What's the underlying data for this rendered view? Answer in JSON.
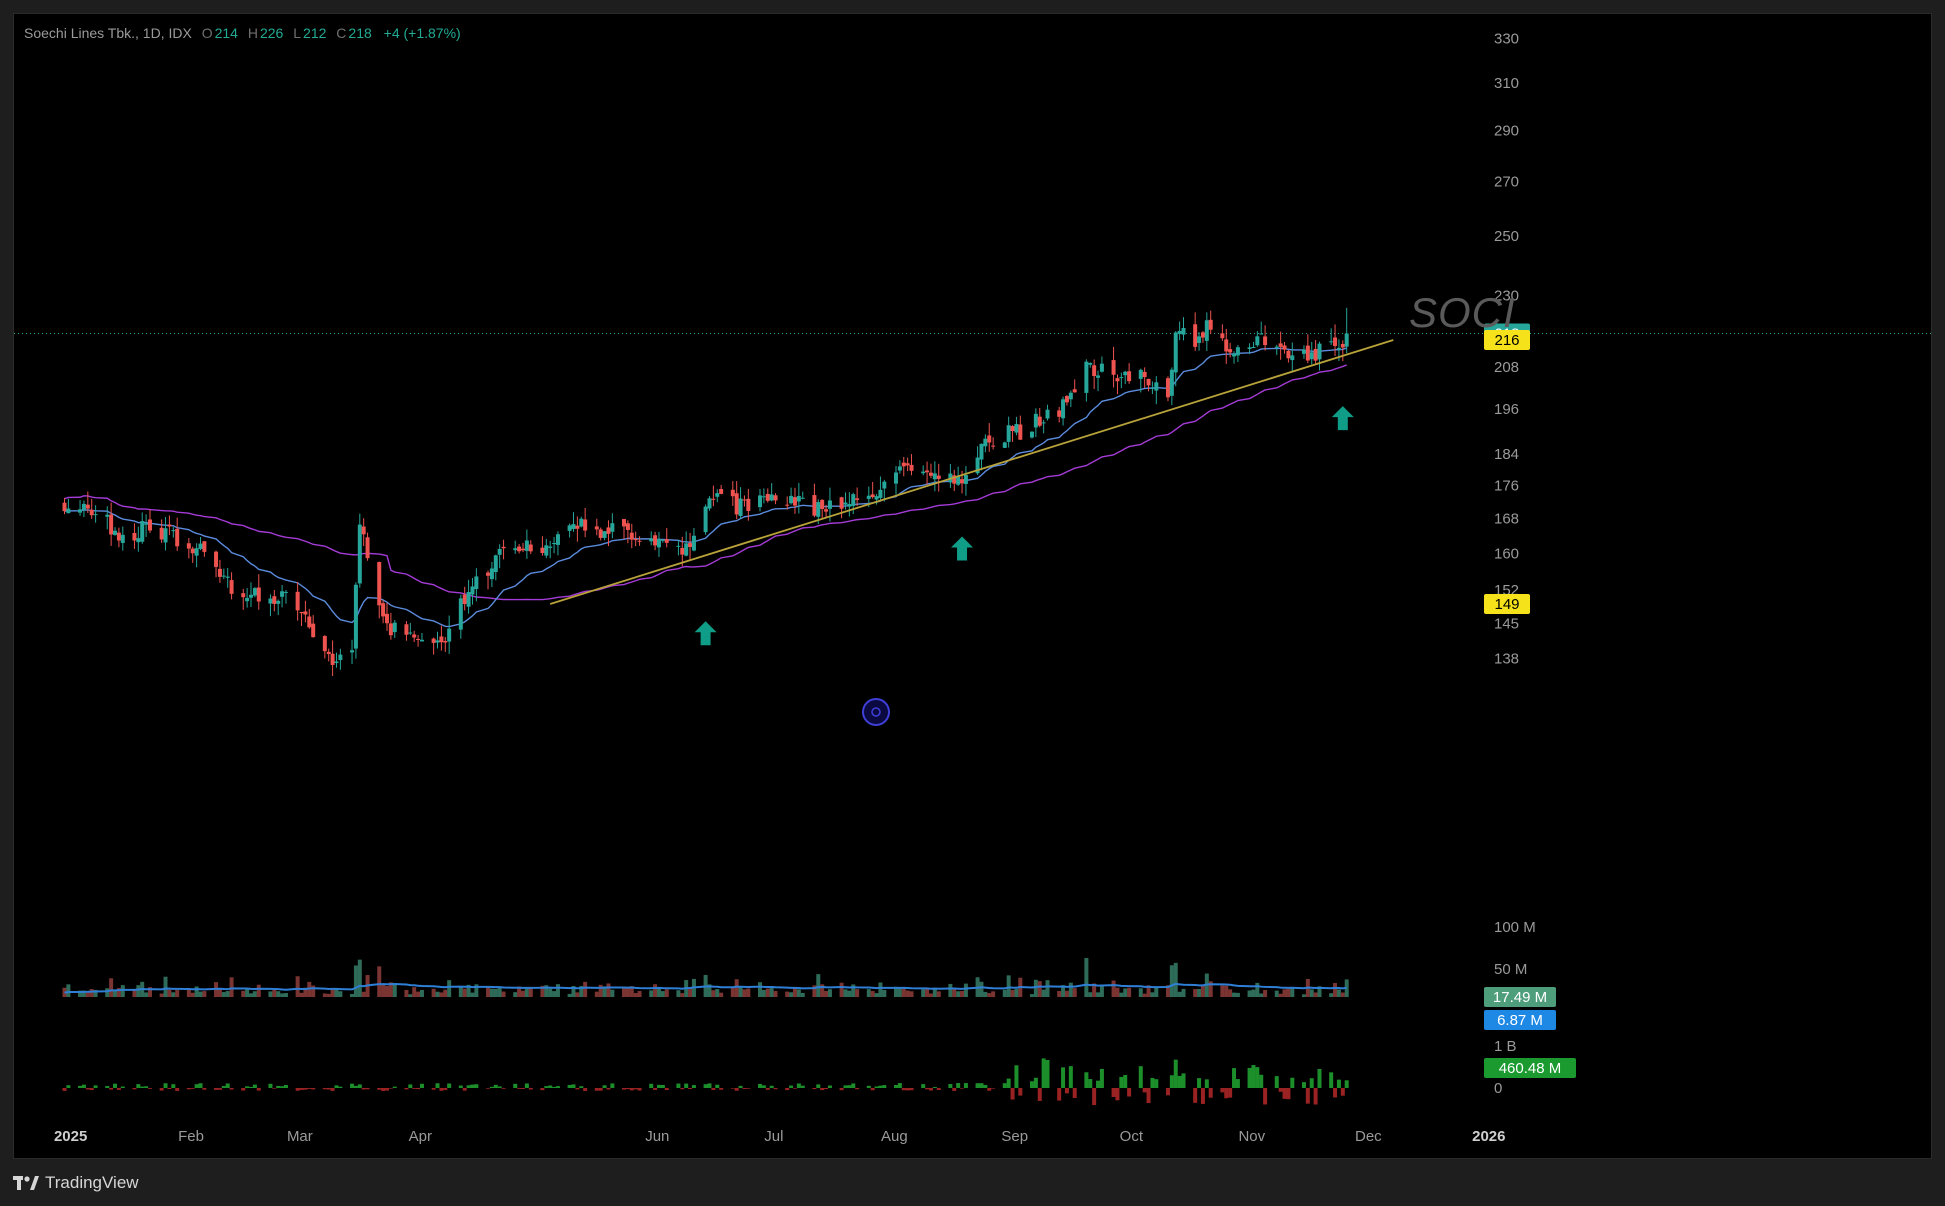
{
  "header": {
    "symbol": "Soechi Lines Tbk., 1D, IDX",
    "open_label": "O",
    "open": "214",
    "high_label": "H",
    "high": "226",
    "low_label": "L",
    "low": "212",
    "close_label": "C",
    "close": "218",
    "change": "+4 (+1.87%)"
  },
  "watermark": "SOCI",
  "footer": {
    "brand": "TradingView",
    "logo_icon": "tradingview-logo-icon"
  },
  "colors": {
    "up": "#26a69a",
    "down": "#ef5350",
    "ema_short": "#5b8bdc",
    "ma_long": "#a43bd6",
    "trendline": "#b8a23a",
    "arrow": "#0f9d87",
    "volume_ma": "#2f7fd6"
  },
  "chart_data": {
    "type": "candlestick",
    "symbol": "SOCI",
    "interval": "1D",
    "exchange": "IDX",
    "price_axis": {
      "ticks": [
        330,
        310,
        290,
        270,
        250,
        230,
        208,
        196,
        184,
        176,
        168,
        160,
        152,
        145,
        138
      ],
      "scale": "log",
      "range": [
        130,
        335
      ]
    },
    "time_axis": {
      "labels": [
        "2025",
        "Feb",
        "Mar",
        "Apr",
        "Jun",
        "Jul",
        "Aug",
        "Sep",
        "Oct",
        "Nov",
        "Dec",
        "2026"
      ]
    },
    "price_labels": [
      {
        "value": "218",
        "bg": "#26a69a",
        "fg": "#ffffff"
      },
      {
        "value": "216",
        "bg": "#f5e21a",
        "fg": "#000000"
      },
      {
        "value": "149",
        "bg": "#f5e21a",
        "fg": "#000000"
      }
    ],
    "last_close": 218,
    "trendline": {
      "from": {
        "date": "2025-05-07",
        "price": 149
      },
      "to": {
        "date": "2025-12-10",
        "price": 216
      }
    },
    "signal_arrows": [
      {
        "date": "2025-06-16",
        "price": 150
      },
      {
        "date": "2025-08-21",
        "price": 169
      },
      {
        "date": "2025-11-27",
        "price": 203
      }
    ],
    "price_keypoints": [
      [
        "2025-01-02",
        172
      ],
      [
        "2025-01-10",
        170
      ],
      [
        "2025-01-17",
        163
      ],
      [
        "2025-01-24",
        167
      ],
      [
        "2025-01-31",
        163
      ],
      [
        "2025-02-07",
        160
      ],
      [
        "2025-02-14",
        152
      ],
      [
        "2025-02-21",
        151
      ],
      [
        "2025-02-28",
        150
      ],
      [
        "2025-03-05",
        146
      ],
      [
        "2025-03-12",
        138
      ],
      [
        "2025-03-17",
        140
      ],
      [
        "2025-03-19",
        168
      ],
      [
        "2025-03-24",
        150
      ],
      [
        "2025-03-27",
        144
      ],
      [
        "2025-04-08",
        140
      ],
      [
        "2025-04-15",
        150
      ],
      [
        "2025-04-25",
        160
      ],
      [
        "2025-05-05",
        162
      ],
      [
        "2025-05-15",
        166
      ],
      [
        "2025-05-28",
        164
      ],
      [
        "2025-06-12",
        160
      ],
      [
        "2025-06-19",
        176
      ],
      [
        "2025-06-24",
        170
      ],
      [
        "2025-07-01",
        174
      ],
      [
        "2025-07-15",
        170
      ],
      [
        "2025-07-25",
        172
      ],
      [
        "2025-08-05",
        180
      ],
      [
        "2025-08-14",
        180
      ],
      [
        "2025-08-21",
        178
      ],
      [
        "2025-08-28",
        188
      ],
      [
        "2025-09-05",
        190
      ],
      [
        "2025-09-15",
        196
      ],
      [
        "2025-09-22",
        208
      ],
      [
        "2025-09-29",
        206
      ],
      [
        "2025-10-08",
        204
      ],
      [
        "2025-10-13",
        198
      ],
      [
        "2025-10-15",
        221
      ],
      [
        "2025-10-20",
        212
      ],
      [
        "2025-10-24",
        222
      ],
      [
        "2025-10-30",
        212
      ],
      [
        "2025-11-05",
        216
      ],
      [
        "2025-11-12",
        212
      ],
      [
        "2025-11-20",
        212
      ],
      [
        "2025-11-26",
        214
      ],
      [
        "2025-11-28",
        218
      ]
    ],
    "volume": {
      "axis_ticks": [
        "100 M",
        "50 M"
      ],
      "labels": [
        {
          "value": "17.49 M",
          "bg": "#4e9e7c",
          "fg": "#ffffff"
        },
        {
          "value": "6.87 M",
          "bg": "#1e88e5",
          "fg": "#ffffff"
        }
      ]
    },
    "flow_indicator": {
      "axis_ticks": [
        "1 B",
        "0"
      ],
      "labels": [
        {
          "value": "460.48 M",
          "bg": "#1b9a2f",
          "fg": "#ffffff"
        }
      ]
    }
  }
}
